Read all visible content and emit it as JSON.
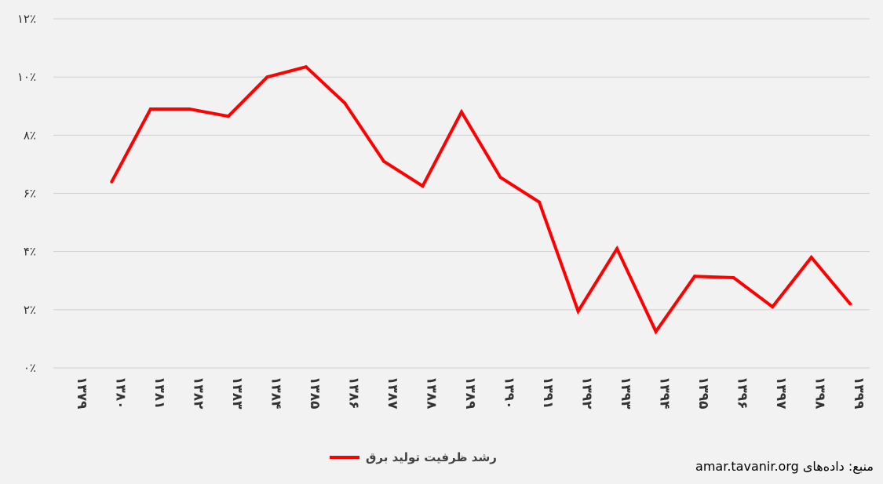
{
  "chart_data": {
    "type": "line",
    "x": [
      "۱۳۷۹",
      "۱۳۸۰",
      "۱۳۸۱",
      "۱۳۸۲",
      "۱۳۸۳",
      "۱۳۸۴",
      "۱۳۸۵",
      "۱۳۸۶",
      "۱۳۸۷",
      "۱۳۸۸",
      "۱۳۸۹",
      "۱۳۹۰",
      "۱۳۹۱",
      "۱۳۹۲",
      "۱۳۹۳",
      "۱۳۹۴",
      "۱۳۹۵",
      "۱۳۹۶",
      "۱۳۹۷",
      "۱۳۹۸",
      "۱۳۹۹"
    ],
    "series": [
      {
        "name": "رشد ظرفیت تولید برق",
        "color": "#ff0000",
        "values": [
          null,
          6.4,
          8.9,
          8.9,
          8.65,
          10.0,
          10.35,
          9.1,
          7.1,
          6.25,
          8.8,
          6.55,
          5.7,
          1.95,
          4.1,
          1.25,
          3.15,
          3.1,
          2.1,
          3.8,
          2.2
        ]
      }
    ],
    "ylim": [
      0,
      12
    ],
    "yticks": [
      0,
      2,
      4,
      6,
      8,
      10,
      12
    ],
    "ytick_labels": [
      "۰٪",
      "۲٪",
      "۴٪",
      "۶٪",
      "۸٪",
      "۱۰٪",
      "۱۲٪"
    ],
    "grid": true,
    "legend": "bottom",
    "title": "",
    "xlabel": "",
    "ylabel": ""
  },
  "source_text": "منبع: داده‌های amar.tavanir.org"
}
